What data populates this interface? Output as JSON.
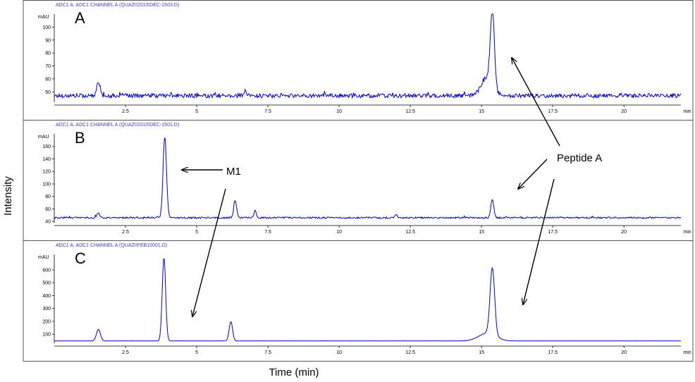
{
  "figure": {
    "ylabel": "Intensity",
    "xlabel": "Time (min)",
    "annotations": [
      {
        "id": "peptide",
        "text": "Peptide A"
      },
      {
        "id": "m1",
        "text": "M1"
      }
    ]
  },
  "chart_data": [
    {
      "type": "line",
      "panel_label": "A",
      "header": "ADC1 A, ADC1 CHANNEL A (QUAZI\\2010\\DEC-1503.D)",
      "y_unit": "mAU",
      "x_unit": "min",
      "xlim": [
        0,
        22
      ],
      "ylim": [
        42,
        110
      ],
      "x_ticks": [
        2.5,
        5,
        7.5,
        10,
        12.5,
        15,
        17.5,
        20
      ],
      "x_tick_labels": [
        "2.5",
        "5",
        "7.5",
        "10",
        "12.5",
        "15",
        "17.5",
        "20"
      ],
      "y_ticks": [
        50,
        60,
        70,
        80,
        90,
        100
      ],
      "y_tick_labels": [
        "50",
        "60",
        "70",
        "80",
        "90",
        "100"
      ],
      "baseline": 47,
      "noise": 1.6,
      "series": [
        {
          "color": "#0000cc",
          "peaks": [
            {
              "x": 1.55,
              "height": 11,
              "width": 0.06
            },
            {
              "x": 6.7,
              "height": 4,
              "width": 0.03
            },
            {
              "x": 15.38,
              "height": 58,
              "width": 0.07
            },
            {
              "x": 15.2,
              "height": 14,
              "width": 0.2
            }
          ]
        }
      ]
    },
    {
      "type": "line",
      "panel_label": "B",
      "header": "ADC1 A, ADC1 CHANNEL A (QUAZI\\2010\\DEC-1501.D)",
      "y_unit": "mAU",
      "x_unit": "min",
      "xlim": [
        0,
        22
      ],
      "ylim": [
        38,
        180
      ],
      "x_ticks": [
        2.5,
        5,
        7.5,
        10,
        12.5,
        15,
        17.5,
        20
      ],
      "x_tick_labels": [
        "2.5",
        "5",
        "7.5",
        "10",
        "12.5",
        "15",
        "17.5",
        "20"
      ],
      "y_ticks": [
        40,
        60,
        80,
        100,
        120,
        140,
        160
      ],
      "y_tick_labels": [
        "40",
        "60",
        "80",
        "100",
        "120",
        "140",
        "160"
      ],
      "baseline": 46,
      "noise": 1.3,
      "series": [
        {
          "color": "#0000cc",
          "peaks": [
            {
              "x": 1.55,
              "height": 7,
              "width": 0.05
            },
            {
              "x": 3.88,
              "height": 130,
              "width": 0.06
            },
            {
              "x": 6.35,
              "height": 28,
              "width": 0.05
            },
            {
              "x": 7.05,
              "height": 12,
              "width": 0.04
            },
            {
              "x": 12.0,
              "height": 6,
              "width": 0.04
            },
            {
              "x": 15.38,
              "height": 30,
              "width": 0.05
            }
          ]
        }
      ]
    },
    {
      "type": "line",
      "panel_label": "C",
      "header": "ADC1 A, ADC1 CHANNEL A (QUAZI\\FEB10001.D)",
      "y_unit": "mAU",
      "x_unit": "min",
      "xlim": [
        0,
        22
      ],
      "ylim": [
        30,
        720
      ],
      "x_ticks": [
        2.5,
        5,
        7.5,
        10,
        12.5,
        15,
        17.5,
        20
      ],
      "x_tick_labels": [
        "2.5",
        "5",
        "7.5",
        "10",
        "12.5",
        "15",
        "17.5",
        "20"
      ],
      "y_ticks": [
        100,
        200,
        300,
        400,
        500,
        600
      ],
      "y_tick_labels": [
        "100",
        "200",
        "300",
        "400",
        "500",
        "600"
      ],
      "baseline": 48,
      "noise": 0.6,
      "series": [
        {
          "color": "#0000cc",
          "peaks": [
            {
              "x": 1.55,
              "height": 90,
              "width": 0.07
            },
            {
              "x": 3.85,
              "height": 650,
              "width": 0.06
            },
            {
              "x": 6.2,
              "height": 150,
              "width": 0.06
            },
            {
              "x": 15.38,
              "height": 520,
              "width": 0.08
            },
            {
              "x": 15.2,
              "height": 60,
              "width": 0.3
            }
          ]
        }
      ]
    }
  ]
}
